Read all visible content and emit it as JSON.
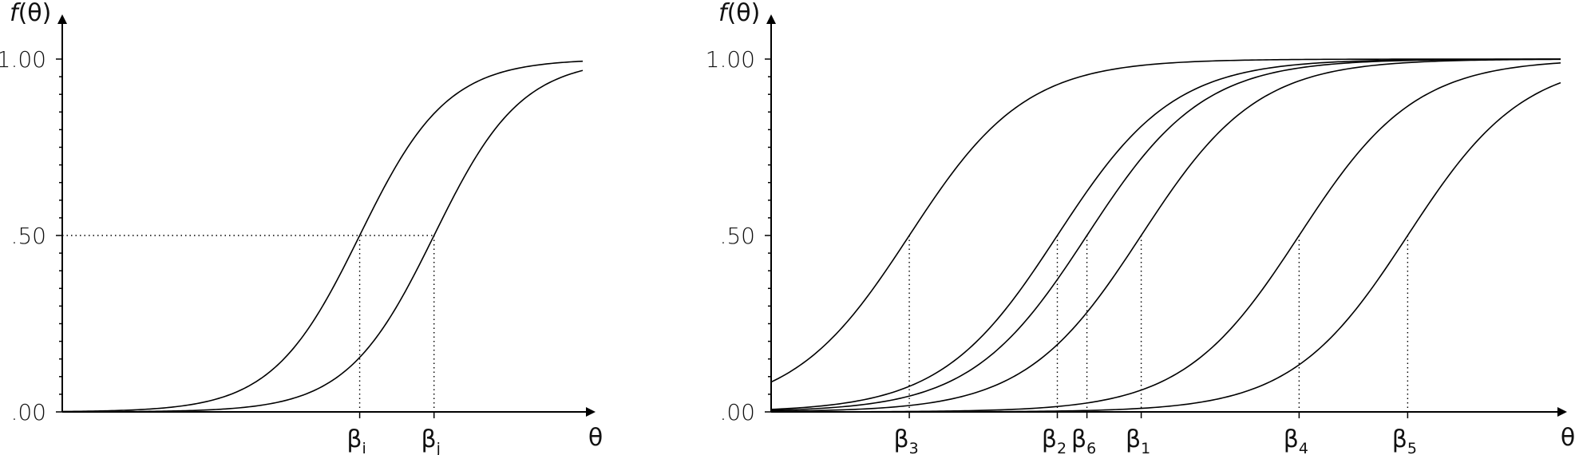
{
  "chart_data": [
    {
      "type": "line",
      "title": "",
      "xlabel": "θ",
      "ylabel": "f(θ)",
      "ylabel_func": "f",
      "ylabel_arg": "(θ)",
      "ylim": [
        0,
        1
      ],
      "xlim": [
        -3.5,
        3.5
      ],
      "y_ticks": [
        {
          "value": 0,
          "label": ".00"
        },
        {
          "value": 0.5,
          "label": ".50"
        },
        {
          "value": 1,
          "label": "1.00"
        }
      ],
      "minor_y_ticks": 20,
      "horizontal_guide": {
        "value": 0.5
      },
      "series": [
        {
          "beta_symbol": "β",
          "beta_sub": "i",
          "location": 0.5,
          "slope": 1.0
        },
        {
          "beta_symbol": "β",
          "beta_sub": "j",
          "location": 1.5,
          "slope": 1.0
        }
      ],
      "grid": false,
      "legend": "none"
    },
    {
      "type": "line",
      "title": "",
      "xlabel": "θ",
      "ylabel": "f(θ)",
      "ylabel_func": "f",
      "ylabel_arg": "(θ)",
      "ylim": [
        0,
        1
      ],
      "xlim": [
        -4,
        4
      ],
      "y_ticks": [
        {
          "value": 0,
          "label": ".00"
        },
        {
          "value": 0.5,
          "label": ".50"
        },
        {
          "value": 1,
          "label": "1.00"
        }
      ],
      "minor_y_ticks": 20,
      "series": [
        {
          "beta_symbol": "β",
          "beta_sub": "3",
          "location": -2.6,
          "slope": 1.0
        },
        {
          "beta_symbol": "β",
          "beta_sub": "2",
          "location": -1.1,
          "slope": 1.0
        },
        {
          "beta_symbol": "β",
          "beta_sub": "6",
          "location": -0.8,
          "slope": 1.0
        },
        {
          "beta_symbol": "β",
          "beta_sub": "1",
          "location": -0.25,
          "slope": 1.0
        },
        {
          "beta_symbol": "β",
          "beta_sub": "4",
          "location": 1.35,
          "slope": 1.0
        },
        {
          "beta_symbol": "β",
          "beta_sub": "5",
          "location": 2.45,
          "slope": 1.0
        }
      ],
      "grid": false,
      "legend": "none"
    }
  ]
}
